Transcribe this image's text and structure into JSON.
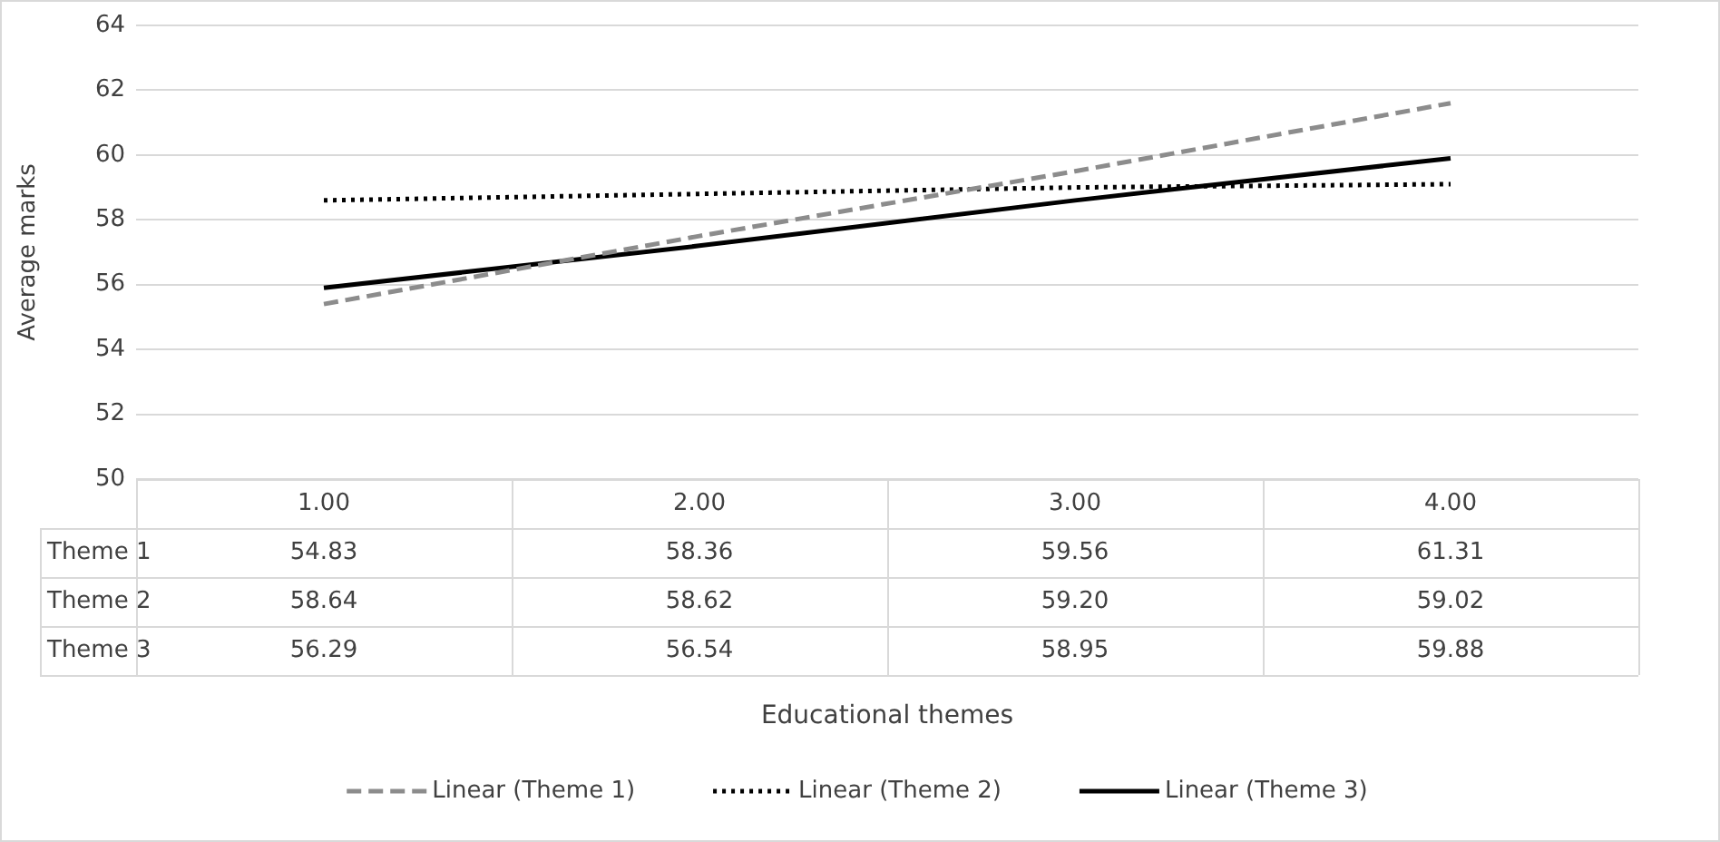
{
  "chart_data": {
    "type": "line",
    "ylabel": "Average marks",
    "categories": [
      "1.00",
      "2.00",
      "3.00",
      "4.00"
    ],
    "ylim": [
      50,
      64
    ],
    "yticks": [
      50,
      52,
      54,
      56,
      58,
      60,
      62,
      64
    ],
    "grid": "y",
    "legend": "bottom",
    "marker": "none",
    "series": [
      {
        "name": "Linear (Theme 1)",
        "color": "#8c8c8c",
        "line_style": "dashed",
        "values": [
          55.4,
          57.5,
          59.5,
          61.6
        ]
      },
      {
        "name": "Linear (Theme 2)",
        "color": "#000000",
        "line_style": "dotted",
        "values": [
          58.6,
          58.8,
          59.0,
          59.1
        ]
      },
      {
        "name": "Linear (Theme 3)",
        "color": "#000000",
        "line_style": "solid",
        "values": [
          55.9,
          57.2,
          58.6,
          59.9
        ]
      }
    ],
    "annotations": [
      "Theme 1",
      "54.83",
      "58.36",
      "59.56",
      "61.31",
      "Theme 2",
      "58.64",
      "58.62",
      "59.20",
      "59.02",
      "Theme 3",
      "56.29",
      "56.54",
      "58.95",
      "59.88",
      "Educational themes"
    ]
  }
}
